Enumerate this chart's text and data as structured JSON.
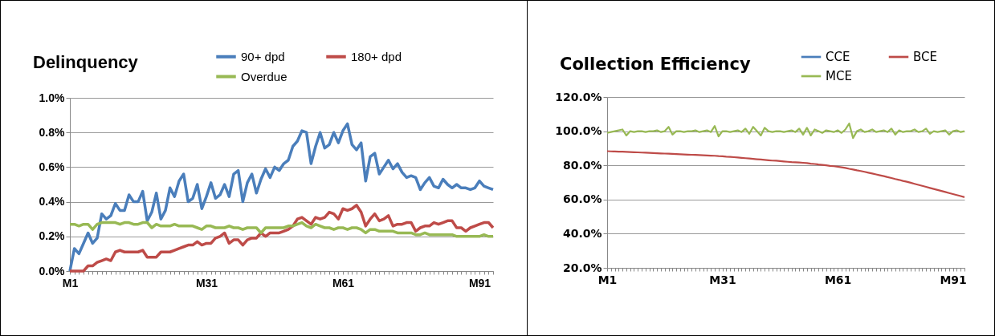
{
  "chart_data": [
    {
      "type": "line",
      "title": "Delinquency",
      "categories": [
        "M1",
        null,
        null,
        null,
        null,
        null,
        null,
        null,
        null,
        null,
        null,
        null,
        null,
        null,
        null,
        null,
        null,
        null,
        null,
        null,
        null,
        null,
        null,
        null,
        null,
        null,
        null,
        null,
        null,
        null,
        "M31",
        null,
        null,
        null,
        null,
        null,
        null,
        null,
        null,
        null,
        null,
        null,
        null,
        null,
        null,
        null,
        null,
        null,
        null,
        null,
        null,
        null,
        null,
        null,
        null,
        null,
        null,
        null,
        null,
        null,
        "M61",
        null,
        null,
        null,
        null,
        null,
        null,
        null,
        null,
        null,
        null,
        null,
        null,
        null,
        null,
        null,
        null,
        null,
        null,
        null,
        null,
        null,
        null,
        null,
        null,
        null,
        null,
        null,
        null,
        null,
        "M91",
        null,
        null,
        null
      ],
      "series": [
        {
          "name": "90+ dpd",
          "color": "#4a7ebb",
          "values": [
            0,
            0.13,
            0.1,
            0.16,
            0.22,
            0.16,
            0.19,
            0.33,
            0.3,
            0.32,
            0.39,
            0.35,
            0.35,
            0.44,
            0.4,
            0.4,
            0.46,
            0.29,
            0.34,
            0.45,
            0.3,
            0.35,
            0.48,
            0.43,
            0.52,
            0.56,
            0.4,
            0.42,
            0.5,
            0.36,
            0.43,
            0.51,
            0.42,
            0.44,
            0.5,
            0.43,
            0.56,
            0.58,
            0.4,
            0.51,
            0.56,
            0.45,
            0.53,
            0.59,
            0.54,
            0.6,
            0.58,
            0.62,
            0.64,
            0.72,
            0.75,
            0.81,
            0.8,
            0.62,
            0.72,
            0.8,
            0.71,
            0.73,
            0.8,
            0.74,
            0.81,
            0.85,
            0.73,
            0.7,
            0.74,
            0.52,
            0.66,
            0.68,
            0.56,
            0.6,
            0.64,
            0.59,
            0.62,
            0.57,
            0.54,
            0.55,
            0.54,
            0.47,
            0.51,
            0.54,
            0.49,
            0.48,
            0.53,
            0.5,
            0.48,
            0.5,
            0.48,
            0.48,
            0.47,
            0.48,
            0.52,
            0.49,
            0.48,
            0.47
          ]
        },
        {
          "name": "180+ dpd",
          "color": "#be4b48",
          "values": [
            0,
            0,
            0,
            0,
            0.03,
            0.03,
            0.05,
            0.06,
            0.07,
            0.06,
            0.11,
            0.12,
            0.11,
            0.11,
            0.11,
            0.11,
            0.12,
            0.08,
            0.08,
            0.08,
            0.11,
            0.11,
            0.11,
            0.12,
            0.13,
            0.14,
            0.15,
            0.15,
            0.17,
            0.15,
            0.16,
            0.16,
            0.19,
            0.2,
            0.22,
            0.16,
            0.18,
            0.18,
            0.15,
            0.18,
            0.19,
            0.19,
            0.22,
            0.2,
            0.22,
            0.22,
            0.22,
            0.23,
            0.24,
            0.26,
            0.3,
            0.31,
            0.29,
            0.27,
            0.31,
            0.3,
            0.31,
            0.34,
            0.33,
            0.3,
            0.36,
            0.35,
            0.36,
            0.38,
            0.34,
            0.26,
            0.3,
            0.33,
            0.29,
            0.3,
            0.32,
            0.26,
            0.27,
            0.27,
            0.28,
            0.28,
            0.23,
            0.25,
            0.26,
            0.26,
            0.28,
            0.27,
            0.28,
            0.29,
            0.29,
            0.25,
            0.25,
            0.23,
            0.25,
            0.26,
            0.27,
            0.28,
            0.28,
            0.25
          ]
        },
        {
          "name": "Overdue",
          "color": "#98b954",
          "values": [
            0.27,
            0.27,
            0.26,
            0.27,
            0.27,
            0.24,
            0.27,
            0.28,
            0.28,
            0.28,
            0.28,
            0.27,
            0.28,
            0.28,
            0.27,
            0.27,
            0.28,
            0.28,
            0.25,
            0.27,
            0.26,
            0.26,
            0.26,
            0.27,
            0.26,
            0.26,
            0.26,
            0.26,
            0.25,
            0.24,
            0.26,
            0.26,
            0.25,
            0.25,
            0.25,
            0.26,
            0.25,
            0.25,
            0.24,
            0.25,
            0.25,
            0.25,
            0.22,
            0.25,
            0.25,
            0.25,
            0.25,
            0.25,
            0.26,
            0.26,
            0.27,
            0.28,
            0.26,
            0.25,
            0.27,
            0.26,
            0.25,
            0.25,
            0.24,
            0.25,
            0.25,
            0.24,
            0.25,
            0.25,
            0.24,
            0.22,
            0.24,
            0.24,
            0.23,
            0.23,
            0.23,
            0.23,
            0.22,
            0.22,
            0.22,
            0.22,
            0.21,
            0.21,
            0.22,
            0.21,
            0.21,
            0.21,
            0.21,
            0.21,
            0.21,
            0.2,
            0.2,
            0.2,
            0.2,
            0.2,
            0.2,
            0.21,
            0.2,
            0.2
          ]
        }
      ],
      "ylim": [
        0,
        1.0
      ],
      "yticks": [
        {
          "value": 0,
          "label": "0.0%"
        },
        {
          "value": 0.2,
          "label": "0.2%"
        },
        {
          "value": 0.4,
          "label": "0.4%"
        },
        {
          "value": 0.6,
          "label": "0.6%"
        },
        {
          "value": 0.8,
          "label": "0.8%"
        },
        {
          "value": 1.0,
          "label": "1.0%"
        }
      ],
      "grid": "y",
      "legend": "top right"
    },
    {
      "type": "line",
      "title": "Collection Efficiency",
      "categories": [
        "M1",
        null,
        null,
        null,
        null,
        null,
        null,
        null,
        null,
        null,
        null,
        null,
        null,
        null,
        null,
        null,
        null,
        null,
        null,
        null,
        null,
        null,
        null,
        null,
        null,
        null,
        null,
        null,
        null,
        null,
        "M31",
        null,
        null,
        null,
        null,
        null,
        null,
        null,
        null,
        null,
        null,
        null,
        null,
        null,
        null,
        null,
        null,
        null,
        null,
        null,
        null,
        null,
        null,
        null,
        null,
        null,
        null,
        null,
        null,
        null,
        "M61",
        null,
        null,
        null,
        null,
        null,
        null,
        null,
        null,
        null,
        null,
        null,
        null,
        null,
        null,
        null,
        null,
        null,
        null,
        null,
        null,
        null,
        null,
        null,
        null,
        null,
        null,
        null,
        null,
        null,
        "M91",
        null,
        null,
        null
      ],
      "series": [
        {
          "name": "CCE",
          "color": "#4a7ebb",
          "values": [
            null,
            null,
            null,
            null,
            null,
            null,
            null,
            null,
            null,
            null,
            null,
            null,
            null,
            null,
            null,
            null,
            null,
            null,
            null,
            null,
            null,
            null,
            null,
            null,
            null,
            null,
            null,
            null,
            null,
            null,
            null,
            null,
            null,
            null,
            null,
            null,
            null,
            null,
            null,
            null,
            null,
            null,
            null,
            null,
            null,
            null,
            null,
            null,
            null,
            null,
            null,
            null,
            null,
            null,
            null,
            null,
            null,
            null,
            null,
            null,
            null,
            null,
            null,
            null,
            null,
            null,
            null,
            null,
            null,
            null,
            null,
            null,
            null,
            null,
            null,
            null,
            null,
            null,
            null,
            null,
            null,
            null,
            null,
            null,
            null,
            null,
            null,
            null,
            null,
            null,
            null,
            null,
            null,
            null
          ]
        },
        {
          "name": "BCE",
          "color": "#be4b48",
          "values": [
            88.3,
            88.2,
            88.1,
            88.0,
            88.0,
            87.9,
            87.8,
            87.7,
            87.6,
            87.5,
            87.4,
            87.3,
            87.2,
            87.1,
            87.0,
            86.9,
            86.8,
            86.7,
            86.6,
            86.5,
            86.4,
            86.3,
            86.2,
            86.1,
            86.0,
            85.9,
            85.8,
            85.7,
            85.6,
            85.4,
            85.3,
            85.1,
            85.0,
            84.8,
            84.6,
            84.4,
            84.2,
            84.0,
            83.8,
            83.6,
            83.4,
            83.2,
            83.0,
            82.8,
            82.7,
            82.5,
            82.3,
            82.1,
            81.9,
            81.8,
            81.7,
            81.5,
            81.3,
            81.0,
            80.8,
            80.5,
            80.3,
            80.0,
            79.7,
            79.5,
            79.2,
            78.9,
            78.5,
            78.0,
            77.6,
            77.1,
            76.7,
            76.2,
            75.7,
            75.2,
            74.7,
            74.2,
            73.7,
            73.1,
            72.6,
            72.0,
            71.5,
            70.9,
            70.4,
            69.8,
            69.2,
            68.6,
            68.0,
            67.4,
            66.8,
            66.2,
            65.6,
            65.0,
            64.4,
            63.8,
            63.2,
            62.6,
            62.0,
            61.4
          ]
        },
        {
          "name": "MCE",
          "color": "#98b954",
          "values": [
            99,
            99.5,
            100,
            100.5,
            101,
            97.5,
            100,
            99.5,
            100,
            100,
            99.5,
            100,
            100,
            100.5,
            99.5,
            100,
            102.5,
            98,
            100,
            100,
            99.5,
            100,
            100,
            100.5,
            99.5,
            100,
            100.5,
            99.5,
            103,
            97,
            100,
            100,
            99.5,
            100,
            100.5,
            99.5,
            101.5,
            98.5,
            102.5,
            100,
            97.5,
            102,
            100,
            99.5,
            100,
            100,
            99.5,
            100,
            100.5,
            99.5,
            101.5,
            98,
            102,
            97.5,
            101,
            100,
            99,
            100.5,
            100,
            99.5,
            100.5,
            99,
            101,
            104.5,
            96,
            100,
            101,
            99.5,
            100,
            101,
            99.5,
            100,
            100.5,
            99.5,
            101.5,
            98,
            100.5,
            99.5,
            100,
            100,
            101,
            99.5,
            100,
            101.5,
            98.5,
            100,
            99.5,
            100,
            100.5,
            98,
            100,
            100.5,
            99.5,
            100
          ]
        }
      ],
      "ylim": [
        20,
        120
      ],
      "yticks": [
        {
          "value": 20,
          "label": "20.0%"
        },
        {
          "value": 40,
          "label": "40.0%"
        },
        {
          "value": 60,
          "label": "60.0%"
        },
        {
          "value": 80,
          "label": "80.0%"
        },
        {
          "value": 100,
          "label": "100.0%"
        },
        {
          "value": 120,
          "label": "120.0%"
        }
      ],
      "grid": "y",
      "legend": "top right"
    }
  ]
}
